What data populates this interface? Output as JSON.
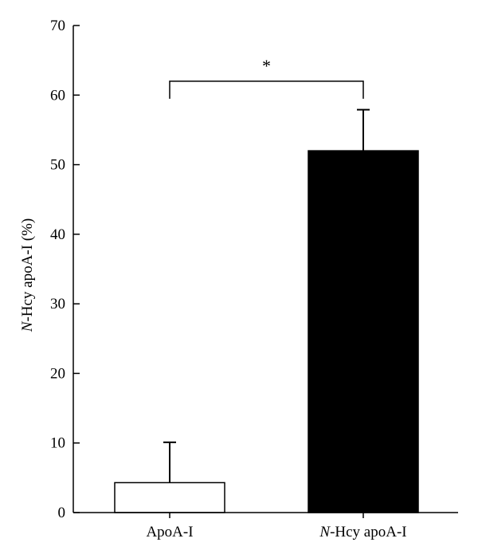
{
  "chart_data": {
    "type": "bar",
    "categories": [
      "ApoA-I",
      "N-Hcy apoA-I"
    ],
    "category_labels": [
      {
        "italic": "",
        "rest": "ApoA-I"
      },
      {
        "italic": "N",
        "rest": "-Hcy apoA-I"
      }
    ],
    "values": [
      4.3,
      52.0
    ],
    "errors": [
      5.8,
      5.9
    ],
    "bar_fills": [
      "#ffffff",
      "#000000"
    ],
    "ylim": [
      0,
      70
    ],
    "yticks": [
      0,
      10,
      20,
      30,
      40,
      50,
      60,
      70
    ],
    "ylabel_italic": "N",
    "ylabel_rest": "-Hcy apoA-I (%)",
    "xlabel": "",
    "title": "",
    "grid": false,
    "significance": {
      "between": [
        0,
        1
      ],
      "level": 62,
      "label": "*"
    }
  }
}
